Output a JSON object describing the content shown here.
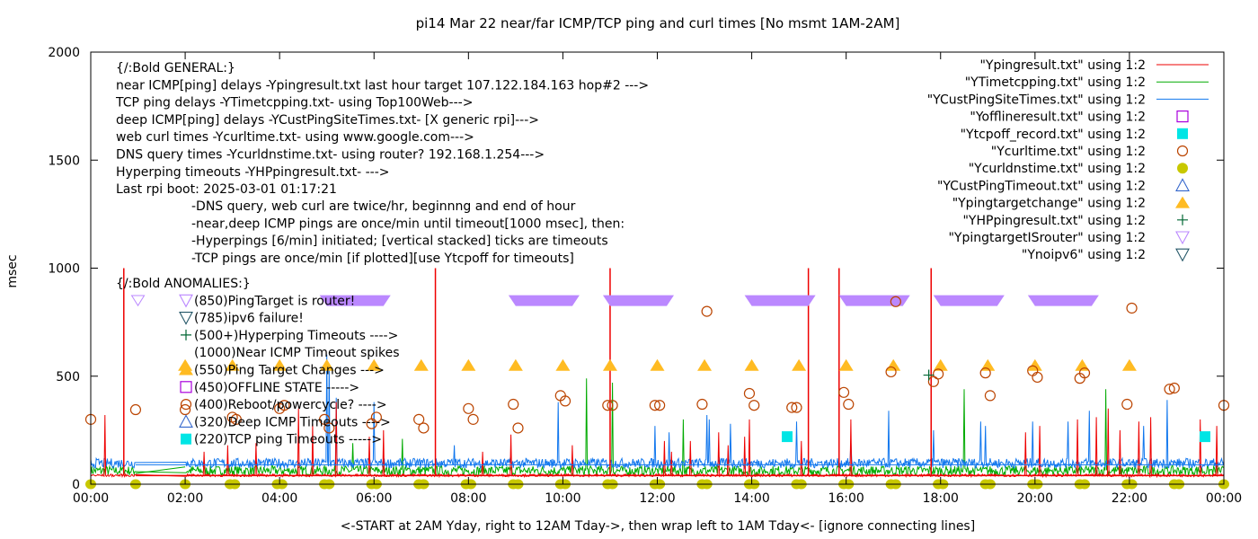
{
  "chart_data": {
    "type": "line",
    "title": "pi14 Mar 22  near/far ICMP/TCP ping and curl times [No msmt 1AM-2AM]",
    "xlabel": "<-START at 2AM Yday, right to 12AM Tday->, then wrap left to 1AM Tday<- [ignore connecting lines]",
    "ylabel": "msec",
    "xlim_hours": [
      0,
      24
    ],
    "ylim": [
      0,
      2000
    ],
    "x_ticks": [
      "00:00",
      "02:00",
      "04:00",
      "06:00",
      "08:00",
      "10:00",
      "12:00",
      "14:00",
      "16:00",
      "18:00",
      "20:00",
      "22:00",
      "00:00"
    ],
    "y_ticks": [
      "0",
      "500",
      "1000",
      "1500",
      "2000"
    ],
    "y_tick_values": [
      0,
      500,
      1000,
      1500,
      2000
    ],
    "grid": false,
    "legend_position": "top-right",
    "legend": [
      {
        "label": "\"Ypingresult.txt\" using 1:2",
        "style": "line",
        "color": "#ee0000"
      },
      {
        "label": "\"YTimetcpping.txt\" using 1:2",
        "style": "line",
        "color": "#00aa00"
      },
      {
        "label": "\"YCustPingSiteTimes.txt\" using 1:2",
        "style": "line",
        "color": "#1177ee"
      },
      {
        "label": "\"Yofflineresult.txt\" using 1:2",
        "style": "open-square",
        "color": "#aa00dd"
      },
      {
        "label": "\"Ytcpoff_record.txt\" using 1:2",
        "style": "filled-square",
        "color": "#00e5e5"
      },
      {
        "label": "\"Ycurltime.txt\" using 1:2",
        "style": "open-circle",
        "color": "#bb4400"
      },
      {
        "label": "\"Ycurldnstime.txt\" using 1:2",
        "style": "filled-circle",
        "color": "#c8c800"
      },
      {
        "label": "\"YCustPingTimeout.txt\" using 1:2",
        "style": "open-triangle-up",
        "color": "#3366cc"
      },
      {
        "label": "\"Ypingtargetchange\" using 1:2",
        "style": "filled-triangle-up",
        "color": "#ffbb22"
      },
      {
        "label": "\"YHPpingresult.txt\" using 1:2",
        "style": "plus",
        "color": "#006633"
      },
      {
        "label": "\"YpingtargetISrouter\" using 1:2",
        "style": "open-triangle-down",
        "color": "#bb88ff"
      },
      {
        "label": "\"Ynoipv6\" using 1:2",
        "style": "open-triangle-down",
        "color": "#225566"
      }
    ],
    "annotations_general": [
      "{/:Bold GENERAL:}",
      "near ICMP[ping] delays -Ypingresult.txt last hour target 107.122.184.163 hop#2 --->",
      "TCP ping delays -YTimetcpping.txt- using Top100Web--->",
      "deep ICMP[ping] delays -YCustPingSiteTimes.txt- [X generic rpi]--->",
      "web curl times -Ycurltime.txt- using www.google.com--->",
      "DNS query times -Ycurldnstime.txt- using router? 192.168.1.254--->",
      "Hyperping timeouts -YHPpingresult.txt- --->",
      "Last rpi boot: 2025-03-01 01:17:21"
    ],
    "annotations_notes": [
      "-DNS query, web curl are twice/hr, beginnng and end of hour",
      "-near,deep ICMP pings are once/min until timeout[1000 msec], then:",
      "  -Hyperpings [6/min] initiated; [vertical stacked] ticks are timeouts",
      "-TCP pings are once/min [if plotted][use Ytcpoff for timeouts]"
    ],
    "annotations_anomalies": [
      "{/:Bold ANOMALIES:}",
      "(850)PingTarget is router!",
      "(785)ipv6 failure!",
      "(500+)Hyperping Timeouts ---->",
      "(1000)Near ICMP Timeout spikes",
      "(550)Ping Target Changes --->",
      "(450)OFFLINE STATE ----->",
      "(400)Reboot/powercycle? ---->",
      "(320)Deep ICMP Timeouts ---->",
      "(220)TCP ping Timeouts ----->"
    ],
    "series": {
      "ping_target_is_router_bands_hours": [
        [
          5.0,
          6.2
        ],
        [
          9.0,
          10.2
        ],
        [
          11.0,
          12.2
        ],
        [
          14.0,
          15.2
        ],
        [
          16.0,
          17.2
        ],
        [
          18.0,
          19.2
        ],
        [
          20.0,
          21.2
        ]
      ],
      "ping_target_is_router_single_hours": [
        1.0
      ],
      "ping_target_is_router_value": 850,
      "ping_target_change_hours": [
        2,
        3,
        4,
        5,
        6,
        7,
        8,
        9,
        10,
        11,
        12,
        13,
        14,
        15,
        16,
        17,
        18,
        19,
        20,
        21,
        22
      ],
      "ping_target_change_value": 550,
      "tcp_timeouts": [
        {
          "x": 14.75,
          "y": 220
        },
        {
          "x": 23.6,
          "y": 220
        }
      ],
      "hyperping_timeouts": [
        {
          "x": 17.75,
          "y": 505
        }
      ],
      "curl_times": [
        {
          "x": 0.0,
          "y": 300
        },
        {
          "x": 0.95,
          "y": 345
        },
        {
          "x": 2.0,
          "y": 345
        },
        {
          "x": 3.0,
          "y": 310
        },
        {
          "x": 3.08,
          "y": 300
        },
        {
          "x": 4.0,
          "y": 350
        },
        {
          "x": 4.1,
          "y": 365
        },
        {
          "x": 4.95,
          "y": 300
        },
        {
          "x": 5.05,
          "y": 260
        },
        {
          "x": 5.95,
          "y": 280
        },
        {
          "x": 6.05,
          "y": 310
        },
        {
          "x": 6.95,
          "y": 300
        },
        {
          "x": 7.05,
          "y": 260
        },
        {
          "x": 8.0,
          "y": 350
        },
        {
          "x": 8.1,
          "y": 300
        },
        {
          "x": 8.95,
          "y": 370
        },
        {
          "x": 9.05,
          "y": 260
        },
        {
          "x": 9.95,
          "y": 410
        },
        {
          "x": 10.05,
          "y": 385
        },
        {
          "x": 10.95,
          "y": 365
        },
        {
          "x": 11.05,
          "y": 365
        },
        {
          "x": 11.95,
          "y": 365
        },
        {
          "x": 12.05,
          "y": 365
        },
        {
          "x": 12.95,
          "y": 370
        },
        {
          "x": 13.05,
          "y": 800
        },
        {
          "x": 13.95,
          "y": 420
        },
        {
          "x": 14.05,
          "y": 365
        },
        {
          "x": 14.85,
          "y": 355
        },
        {
          "x": 14.95,
          "y": 355
        },
        {
          "x": 15.95,
          "y": 425
        },
        {
          "x": 16.05,
          "y": 370
        },
        {
          "x": 16.95,
          "y": 520
        },
        {
          "x": 17.05,
          "y": 845
        },
        {
          "x": 17.85,
          "y": 475
        },
        {
          "x": 17.95,
          "y": 510
        },
        {
          "x": 18.95,
          "y": 515
        },
        {
          "x": 19.05,
          "y": 410
        },
        {
          "x": 19.95,
          "y": 525
        },
        {
          "x": 20.05,
          "y": 495
        },
        {
          "x": 20.95,
          "y": 490
        },
        {
          "x": 21.05,
          "y": 515
        },
        {
          "x": 21.95,
          "y": 370
        },
        {
          "x": 22.05,
          "y": 815
        },
        {
          "x": 22.85,
          "y": 440
        },
        {
          "x": 22.95,
          "y": 445
        },
        {
          "x": 24.0,
          "y": 365
        }
      ],
      "dns_times_hours": [
        0,
        0.95,
        2.0,
        2.95,
        3.05,
        3.95,
        4.05,
        4.95,
        5.05,
        5.95,
        6.05,
        6.95,
        7.05,
        7.95,
        8.05,
        8.95,
        9.05,
        9.95,
        10.05,
        10.95,
        11.05,
        11.95,
        12.05,
        12.95,
        13.05,
        13.95,
        14.05,
        14.95,
        15.05,
        15.95,
        16.05,
        16.95,
        17.05,
        17.95,
        18.05,
        18.95,
        19.05,
        19.95,
        20.05,
        20.95,
        21.05,
        21.95,
        22.05,
        22.95,
        23.05,
        24.0
      ],
      "dns_value": 0,
      "near_icmp_timeout_spikes_hours": [
        0.7,
        7.3,
        11.0,
        15.2,
        15.85,
        17.8
      ],
      "near_icmp_spike_value": 1000,
      "near_icmp_baseline": 40,
      "tcp_baseline": 50,
      "deep_icmp_baseline": 90,
      "deep_icmp_peaks": [
        {
          "x": 5.0,
          "y": 600
        },
        {
          "x": 5.05,
          "y": 550
        },
        {
          "x": 5.2,
          "y": 400
        },
        {
          "x": 6.0,
          "y": 380
        },
        {
          "x": 7.7,
          "y": 180
        },
        {
          "x": 9.9,
          "y": 380
        },
        {
          "x": 11.95,
          "y": 270
        },
        {
          "x": 12.25,
          "y": 240
        },
        {
          "x": 13.05,
          "y": 320
        },
        {
          "x": 13.1,
          "y": 300
        },
        {
          "x": 13.55,
          "y": 280
        },
        {
          "x": 14.95,
          "y": 290
        },
        {
          "x": 16.1,
          "y": 200
        },
        {
          "x": 16.9,
          "y": 340
        },
        {
          "x": 17.85,
          "y": 250
        },
        {
          "x": 18.85,
          "y": 290
        },
        {
          "x": 18.95,
          "y": 270
        },
        {
          "x": 19.95,
          "y": 290
        },
        {
          "x": 20.7,
          "y": 290
        },
        {
          "x": 21.15,
          "y": 340
        },
        {
          "x": 22.3,
          "y": 270
        },
        {
          "x": 22.8,
          "y": 390
        }
      ],
      "near_icmp_peaks": [
        {
          "x": 0.3,
          "y": 320
        },
        {
          "x": 2.4,
          "y": 150
        },
        {
          "x": 2.9,
          "y": 180
        },
        {
          "x": 3.5,
          "y": 190
        },
        {
          "x": 4.4,
          "y": 350
        },
        {
          "x": 4.7,
          "y": 280
        },
        {
          "x": 5.2,
          "y": 380
        },
        {
          "x": 5.9,
          "y": 220
        },
        {
          "x": 6.2,
          "y": 250
        },
        {
          "x": 8.3,
          "y": 150
        },
        {
          "x": 8.9,
          "y": 230
        },
        {
          "x": 10.2,
          "y": 180
        },
        {
          "x": 12.15,
          "y": 200
        },
        {
          "x": 12.3,
          "y": 150
        },
        {
          "x": 12.7,
          "y": 200
        },
        {
          "x": 13.3,
          "y": 240
        },
        {
          "x": 13.5,
          "y": 180
        },
        {
          "x": 13.85,
          "y": 220
        },
        {
          "x": 13.95,
          "y": 300
        },
        {
          "x": 15.05,
          "y": 200
        },
        {
          "x": 16.1,
          "y": 300
        },
        {
          "x": 19.8,
          "y": 240
        },
        {
          "x": 20.1,
          "y": 270
        },
        {
          "x": 20.9,
          "y": 300
        },
        {
          "x": 21.3,
          "y": 310
        },
        {
          "x": 21.55,
          "y": 350
        },
        {
          "x": 21.8,
          "y": 250
        },
        {
          "x": 22.2,
          "y": 290
        },
        {
          "x": 22.45,
          "y": 310
        },
        {
          "x": 23.5,
          "y": 300
        },
        {
          "x": 23.85,
          "y": 270
        }
      ],
      "tcp_peaks": [
        {
          "x": 5.55,
          "y": 190
        },
        {
          "x": 6.6,
          "y": 210
        },
        {
          "x": 10.5,
          "y": 490
        },
        {
          "x": 11.05,
          "y": 470
        },
        {
          "x": 12.55,
          "y": 300
        },
        {
          "x": 18.5,
          "y": 440
        },
        {
          "x": 21.5,
          "y": 440
        }
      ]
    }
  }
}
